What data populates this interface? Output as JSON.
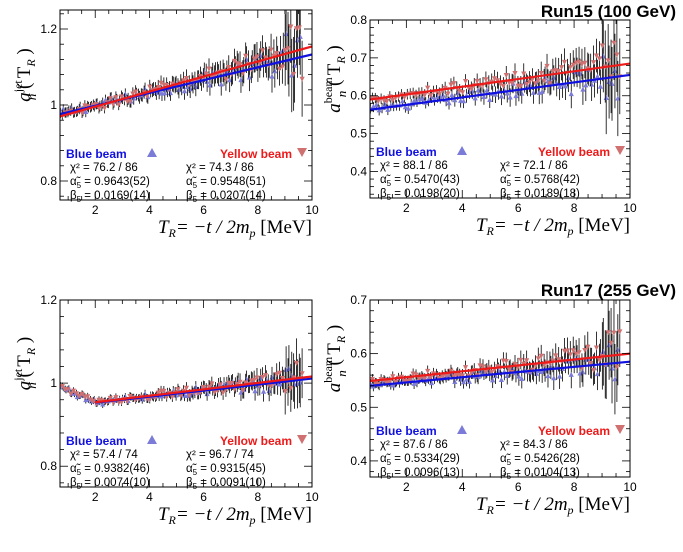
{
  "colors": {
    "blue": "#1010e0",
    "red": "#ee1a1a",
    "blue_marker": "#7b7bd8",
    "red_marker": "#d07070",
    "frame": "#000000"
  },
  "run_labels": [
    "Run15  (100 GeV)",
    "Run17  (255 GeV)"
  ],
  "chart_data": [
    {
      "type": "scatter",
      "panel": "run15-jet",
      "xlim": [
        0.7,
        10
      ],
      "ylim": [
        0.75,
        1.25
      ],
      "xticks": [
        2,
        4,
        6,
        8,
        10
      ],
      "xticklabels": [
        "2",
        "4",
        "6",
        "8",
        "10"
      ],
      "yticks": [
        0.8,
        1.0,
        1.2
      ],
      "yticklabels": [
        "0.8",
        "1",
        "1.2"
      ],
      "ylabel_main": "a",
      "ylabel_sub": "n",
      "ylabel_sup": "jet",
      "ylabel_arg": "( T",
      "ylabel_argsub": "R",
      "ylabel_close": ")",
      "xlabel_main": "T",
      "xlabel_sub": "R",
      "xlabel_rest": "= −t / 2m",
      "xlabel_sub2": "p",
      "xlabel_unit": "[MeV]",
      "series": [
        {
          "name": "Blue beam",
          "marker": "up",
          "fit": {
            "x0": 0.7,
            "x1": 10,
            "y0": 0.976,
            "y1": 1.133
          },
          "chi2": "χ² = 76.2 / 86",
          "alpha": "0.9643(52)",
          "beta": "0.0169(14)",
          "noise": 0.03
        },
        {
          "name": "Yellow beam",
          "marker": "down",
          "fit": {
            "x0": 0.7,
            "x1": 10,
            "y0": 0.97,
            "y1": 1.154
          },
          "chi2": "χ² = 74.3 / 86",
          "alpha": "0.9548(51)",
          "beta": "0.0207(14)",
          "noise": 0.03
        }
      ]
    },
    {
      "type": "scatter",
      "panel": "run15-beam",
      "xlim": [
        0.7,
        10
      ],
      "ylim": [
        0.33,
        0.8
      ],
      "xticks": [
        2,
        4,
        6,
        8,
        10
      ],
      "xticklabels": [
        "2",
        "4",
        "6",
        "8",
        "10"
      ],
      "yticks": [
        0.4,
        0.5,
        0.6,
        0.7,
        0.8
      ],
      "yticklabels": [
        "0.4",
        "0.5",
        "0.6",
        "0.7",
        "0.8"
      ],
      "ylabel_main": "a",
      "ylabel_sub": "n",
      "ylabel_sup": "beam",
      "ylabel_arg": "( T",
      "ylabel_argsub": "R",
      "ylabel_close": ")",
      "xlabel_main": "T",
      "xlabel_sub": "R",
      "xlabel_rest": "= −t / 2m",
      "xlabel_sub2": "p",
      "xlabel_unit": "[MeV]",
      "series": [
        {
          "name": "Blue beam",
          "marker": "up",
          "fit": {
            "x0": 0.7,
            "x1": 10,
            "y0": 0.563,
            "y1": 0.655
          },
          "chi2": "χ² = 88.1 / 86",
          "alpha": "0.5470(43)",
          "beta": "0.0198(20)",
          "noise": 0.03
        },
        {
          "name": "Yellow beam",
          "marker": "down",
          "fit": {
            "x0": 0.7,
            "x1": 10,
            "y0": 0.59,
            "y1": 0.685
          },
          "chi2": "χ² = 72.1 / 86",
          "alpha": "0.5768(42)",
          "beta": "0.0189(18)",
          "noise": 0.03
        }
      ]
    },
    {
      "type": "scatter",
      "panel": "run17-jet",
      "xlim": [
        0.7,
        10
      ],
      "ylim": [
        0.75,
        1.2
      ],
      "xticks": [
        2,
        4,
        6,
        8,
        10
      ],
      "xticklabels": [
        "2",
        "4",
        "6",
        "8",
        "10"
      ],
      "yticks": [
        0.8,
        1.0,
        1.2
      ],
      "yticklabels": [
        "0.8",
        "1",
        "1.2"
      ],
      "ylabel_main": "a",
      "ylabel_sub": "n",
      "ylabel_sup": "jet",
      "ylabel_arg": "( T",
      "ylabel_argsub": "R",
      "ylabel_close": ")",
      "xlabel_main": "T",
      "xlabel_sub": "R",
      "xlabel_rest": "= −t / 2m",
      "xlabel_sub2": "p",
      "xlabel_unit": "[MeV]",
      "series": [
        {
          "name": "Blue beam",
          "marker": "up",
          "fit": {
            "x0": 2.0,
            "x1": 10,
            "y0": 0.953,
            "y1": 1.011
          },
          "chi2": "χ² = 57.4 / 74",
          "alpha": "0.9382(46)",
          "beta": "0.0074(10)",
          "noise": 0.018
        },
        {
          "name": "Yellow beam",
          "marker": "down",
          "fit": {
            "x0": 2.0,
            "x1": 10,
            "y0": 0.954,
            "y1": 1.016
          },
          "chi2": "χ² = 96.7 / 74",
          "alpha": "0.9315(45)",
          "beta": "0.0091(10)",
          "noise": 0.018
        }
      ]
    },
    {
      "type": "scatter",
      "panel": "run17-beam",
      "xlim": [
        0.7,
        10
      ],
      "ylim": [
        0.37,
        0.7
      ],
      "xticks": [
        2,
        4,
        6,
        8,
        10
      ],
      "xticklabels": [
        "2",
        "4",
        "6",
        "8",
        "10"
      ],
      "yticks": [
        0.4,
        0.5,
        0.6,
        0.7
      ],
      "yticklabels": [
        "0.4",
        "0.5",
        "0.6",
        "0.7"
      ],
      "ylabel_main": "a",
      "ylabel_sub": "n",
      "ylabel_sup": "beam",
      "ylabel_arg": "( T",
      "ylabel_argsub": "R",
      "ylabel_close": ")",
      "xlabel_main": "T",
      "xlabel_sub": "R",
      "xlabel_rest": "= −t / 2m",
      "xlabel_sub2": "p",
      "xlabel_unit": "[MeV]",
      "series": [
        {
          "name": "Blue beam",
          "marker": "up",
          "fit": {
            "x0": 0.7,
            "x1": 10,
            "y0": 0.54,
            "y1": 0.585
          },
          "chi2": "χ² = 87.6 / 86",
          "alpha": "0.5334(29)",
          "beta": "0.0096(13)",
          "noise": 0.02
        },
        {
          "name": "Yellow beam",
          "marker": "down",
          "fit": {
            "x0": 0.7,
            "x1": 10,
            "y0": 0.549,
            "y1": 0.6
          },
          "chi2": "χ² = 84.3 / 86",
          "alpha": "0.5426(28)",
          "beta": "0.0104(13)",
          "noise": 0.02
        }
      ]
    }
  ]
}
